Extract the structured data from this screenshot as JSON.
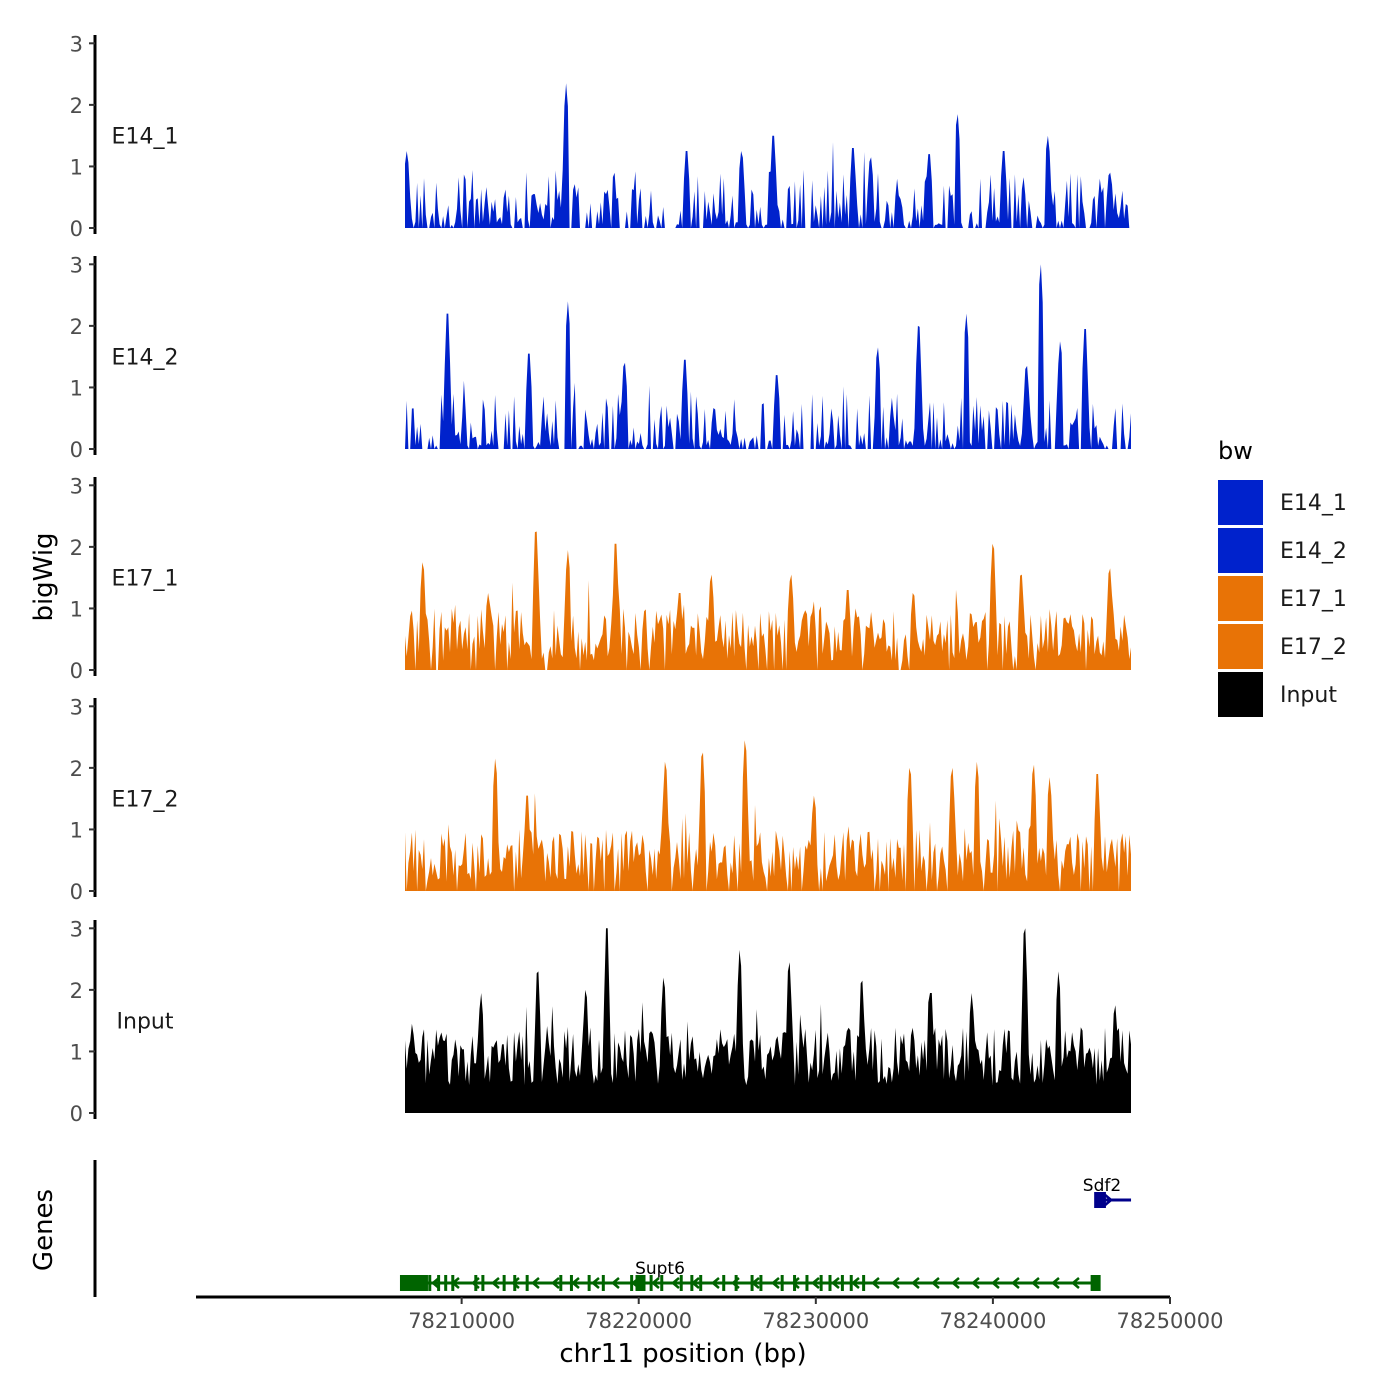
{
  "chart_data": {
    "type": "area",
    "chromosome": "chr11",
    "xlabel": "chr11 position (bp)",
    "ylabel": "bigWig",
    "genes_ylabel": "Genes",
    "x_range": [
      78195000,
      78250000
    ],
    "data_x_range": [
      78206800,
      78247800
    ],
    "x_ticks": [
      78210000,
      78220000,
      78230000,
      78240000,
      78250000
    ],
    "x_tick_labels": [
      "78210000",
      "78220000",
      "78230000",
      "78240000",
      "78250000"
    ],
    "y_range": [
      0,
      3.2
    ],
    "y_ticks": [
      0,
      1,
      2,
      3
    ],
    "y_tick_labels": [
      "0",
      "1",
      "2",
      "3"
    ],
    "legend": {
      "title": "bw",
      "placement": "right",
      "entries": [
        {
          "label": "E14_1",
          "color": "#0022CC"
        },
        {
          "label": "E14_2",
          "color": "#0022CC"
        },
        {
          "label": "E17_1",
          "color": "#E87306"
        },
        {
          "label": "E17_2",
          "color": "#E87306"
        },
        {
          "label": "Input",
          "color": "#000000"
        }
      ]
    },
    "series": [
      {
        "name": "E14_1",
        "color": "#0022CC",
        "gap_fraction": 0.3,
        "peaks": [
          [
            78206900,
            1.25
          ],
          [
            78214100,
            0.55
          ],
          [
            78215900,
            2.35
          ],
          [
            78218200,
            0.55
          ],
          [
            78222700,
            1.25
          ],
          [
            78225800,
            1.25
          ],
          [
            78227600,
            1.5
          ],
          [
            78232100,
            1.3
          ],
          [
            78233100,
            1.15
          ],
          [
            78236400,
            1.2
          ],
          [
            78238000,
            1.85
          ],
          [
            78240600,
            1.25
          ],
          [
            78243100,
            1.5
          ],
          [
            78246600,
            0.9
          ]
        ]
      },
      {
        "name": "E14_2",
        "color": "#0022CC",
        "gap_fraction": 0.25,
        "peaks": [
          [
            78209200,
            2.2
          ],
          [
            78213800,
            1.55
          ],
          [
            78216000,
            2.4
          ],
          [
            78219200,
            1.4
          ],
          [
            78222600,
            1.45
          ],
          [
            78227800,
            1.2
          ],
          [
            78233500,
            1.65
          ],
          [
            78235800,
            2.0
          ],
          [
            78238500,
            2.2
          ],
          [
            78241900,
            1.35
          ],
          [
            78242700,
            3.0
          ],
          [
            78243800,
            1.75
          ],
          [
            78245200,
            1.95
          ]
        ]
      },
      {
        "name": "E17_1",
        "color": "#E87306",
        "gap_fraction": 0.08,
        "peaks": [
          [
            78207800,
            1.75
          ],
          [
            78211500,
            1.25
          ],
          [
            78214200,
            2.25
          ],
          [
            78216000,
            1.95
          ],
          [
            78218700,
            2.05
          ],
          [
            78222300,
            1.25
          ],
          [
            78224100,
            1.55
          ],
          [
            78228600,
            1.55
          ],
          [
            78231800,
            1.3
          ],
          [
            78235500,
            1.25
          ],
          [
            78240000,
            2.05
          ],
          [
            78241600,
            1.55
          ],
          [
            78246600,
            1.65
          ]
        ]
      },
      {
        "name": "E17_2",
        "color": "#E87306",
        "gap_fraction": 0.1,
        "peaks": [
          [
            78211900,
            2.15
          ],
          [
            78213700,
            1.55
          ],
          [
            78221500,
            2.1
          ],
          [
            78223600,
            2.25
          ],
          [
            78226000,
            2.45
          ],
          [
            78229900,
            1.55
          ],
          [
            78235300,
            2.0
          ],
          [
            78237700,
            2.0
          ],
          [
            78239100,
            2.1
          ],
          [
            78242300,
            2.05
          ],
          [
            78243200,
            1.85
          ],
          [
            78245900,
            1.9
          ]
        ]
      },
      {
        "name": "Input",
        "color": "#000000",
        "gap_fraction": 0.0,
        "peaks": [
          [
            78207200,
            1.45
          ],
          [
            78211100,
            1.95
          ],
          [
            78214300,
            2.3
          ],
          [
            78217000,
            2.0
          ],
          [
            78218200,
            3.0
          ],
          [
            78221400,
            2.2
          ],
          [
            78225700,
            2.65
          ],
          [
            78228500,
            2.45
          ],
          [
            78232600,
            2.15
          ],
          [
            78236500,
            1.95
          ],
          [
            78238800,
            1.95
          ],
          [
            78241800,
            3.0
          ],
          [
            78243700,
            2.3
          ],
          [
            78246900,
            1.75
          ]
        ]
      }
    ],
    "genes": [
      {
        "name": "Supt6",
        "start": 78206800,
        "end": 78245800,
        "strand": "-",
        "color": "#006400",
        "exons": [
          78206800,
          78207400,
          78208200,
          78208700,
          78209100,
          78209500,
          78210800,
          78211200,
          78212400,
          78213000,
          78213700,
          78215600,
          78216200,
          78217200,
          78218000,
          78219600,
          78220100,
          78220700,
          78221300,
          78222400,
          78223000,
          78223500,
          78224800,
          78225500,
          78226400,
          78226900,
          78228100,
          78228800,
          78229500,
          78230300,
          78230800,
          78231500,
          78232000,
          78232700,
          78245800
        ]
      },
      {
        "name": "Sdf2",
        "start": 78246000,
        "end": 78247800,
        "strand": "+",
        "color": "#00008B",
        "exons": [
          78246000,
          78246100
        ]
      }
    ]
  }
}
